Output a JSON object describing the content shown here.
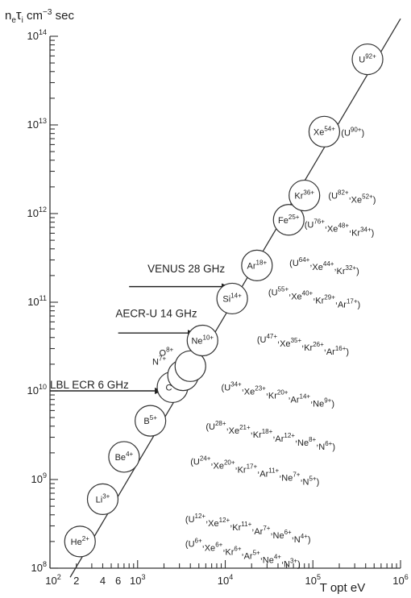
{
  "chart_data": {
    "type": "scatter",
    "title": "",
    "ylabel": "n_e τ_i cm^-3 sec",
    "xlabel": "T opt eV",
    "x_scale": "log",
    "y_scale": "log",
    "xlim": [
      100,
      1000000
    ],
    "ylim": [
      100000000,
      100000000000000
    ],
    "x_tick_labels": [
      {
        "value": 100,
        "base": "10",
        "exp": "2"
      },
      {
        "value": 200,
        "base": "2",
        "exp": ""
      },
      {
        "value": 400,
        "base": "4",
        "exp": ""
      },
      {
        "value": 600,
        "base": "6",
        "exp": ""
      },
      {
        "value": 1000,
        "base": "10",
        "exp": "3"
      },
      {
        "value": 10000,
        "base": "10",
        "exp": "4"
      },
      {
        "value": 100000,
        "base": "10",
        "exp": "5"
      },
      {
        "value": 1000000,
        "base": "10",
        "exp": "6"
      }
    ],
    "y_tick_labels": [
      {
        "value": 100000000,
        "base": "10",
        "exp": "8"
      },
      {
        "value": 1000000000,
        "base": "10",
        "exp": "9"
      },
      {
        "value": 10000000000,
        "base": "10",
        "exp": "10"
      },
      {
        "value": 100000000000,
        "base": "10",
        "exp": "11"
      },
      {
        "value": 1000000000000,
        "base": "10",
        "exp": "12"
      },
      {
        "value": 10000000000000,
        "base": "10",
        "exp": "13"
      },
      {
        "value": 100000000000000,
        "base": "10",
        "exp": "14"
      }
    ],
    "trend_line": {
      "x": [
        170,
        1000000
      ],
      "y": [
        79000000,
        158000000000000
      ]
    },
    "points": [
      {
        "label": "He",
        "charge": "2+",
        "x": 220,
        "y": 200000000
      },
      {
        "label": "Li",
        "charge": "3+",
        "x": 400,
        "y": 600000000
      },
      {
        "label": "Be",
        "charge": "4+",
        "x": 700,
        "y": 1800000000
      },
      {
        "label": "B",
        "charge": "5+",
        "x": 1400,
        "y": 4600000000
      },
      {
        "label": "C",
        "charge": "6+",
        "x": 2500,
        "y": 11000000000
      },
      {
        "label": "N",
        "charge": "7+",
        "x": 3300,
        "y": 15000000000
      },
      {
        "label": "O",
        "charge": "8+",
        "x": 4000,
        "y": 19000000000
      },
      {
        "label": "Ne",
        "charge": "10+",
        "x": 5500,
        "y": 37000000000
      },
      {
        "label": "Si",
        "charge": "14+",
        "x": 12000,
        "y": 110000000000
      },
      {
        "label": "Ar",
        "charge": "18+",
        "x": 23000,
        "y": 260000000000
      },
      {
        "label": "Fe",
        "charge": "25+",
        "x": 53000,
        "y": 850000000000
      },
      {
        "label": "Kr",
        "charge": "36+",
        "x": 80000,
        "y": 1600000000000
      },
      {
        "label": "Xe",
        "charge": "54+",
        "x": 135000,
        "y": 8400000000000
      },
      {
        "label": "U",
        "charge": "92+",
        "x": 420000,
        "y": 55000000000000
      }
    ],
    "ion_groups": [
      {
        "x": 210000,
        "y": 8200000000000,
        "ions": [
          {
            "e": "U",
            "c": "90+"
          }
        ]
      },
      {
        "x": 150000,
        "y": 1600000000000,
        "ions": [
          {
            "e": "U",
            "c": "82+"
          },
          {
            "e": "Xe",
            "c": "52+"
          }
        ]
      },
      {
        "x": 80000,
        "y": 750000000000,
        "ions": [
          {
            "e": "U",
            "c": "76+"
          },
          {
            "e": "Xe",
            "c": "48+"
          },
          {
            "e": "Kr",
            "c": "34+"
          }
        ]
      },
      {
        "x": 54000,
        "y": 280000000000,
        "ions": [
          {
            "e": "U",
            "c": "64+"
          },
          {
            "e": "Xe",
            "c": "44+"
          },
          {
            "e": "Kr",
            "c": "32+"
          }
        ]
      },
      {
        "x": 31000,
        "y": 130000000000,
        "ions": [
          {
            "e": "U",
            "c": "55+"
          },
          {
            "e": "Xe",
            "c": "40+"
          },
          {
            "e": "Kr",
            "c": "29+"
          },
          {
            "e": "Ar",
            "c": "17+"
          }
        ]
      },
      {
        "x": 23000,
        "y": 38000000000,
        "ions": [
          {
            "e": "U",
            "c": "47+"
          },
          {
            "e": "Xe",
            "c": "35+"
          },
          {
            "e": "Kr",
            "c": "26+"
          },
          {
            "e": "Ar",
            "c": "16+"
          }
        ]
      },
      {
        "x": 9000,
        "y": 11000000000,
        "ions": [
          {
            "e": "U",
            "c": "34+"
          },
          {
            "e": "Xe",
            "c": "23+"
          },
          {
            "e": "Kr",
            "c": "20+"
          },
          {
            "e": "Ar",
            "c": "14+"
          },
          {
            "e": "Ne",
            "c": "9+"
          }
        ]
      },
      {
        "x": 6000,
        "y": 4000000000,
        "ions": [
          {
            "e": "U",
            "c": "28+"
          },
          {
            "e": "Xe",
            "c": "21+"
          },
          {
            "e": "Kr",
            "c": "18+"
          },
          {
            "e": "Ar",
            "c": "12+"
          },
          {
            "e": "Ne",
            "c": "8+"
          },
          {
            "e": "N",
            "c": "6+"
          }
        ]
      },
      {
        "x": 4000,
        "y": 1600000000,
        "ions": [
          {
            "e": "U",
            "c": "24+"
          },
          {
            "e": "Xe",
            "c": "20+"
          },
          {
            "e": "Kr",
            "c": "17+"
          },
          {
            "e": "Ar",
            "c": "11+"
          },
          {
            "e": "Ne",
            "c": "7+"
          },
          {
            "e": "N",
            "c": "5+"
          }
        ]
      },
      {
        "x": 3500,
        "y": 360000000,
        "ions": [
          {
            "e": "U",
            "c": "12+"
          },
          {
            "e": "Xe",
            "c": "12+"
          },
          {
            "e": "Kr",
            "c": "11+"
          },
          {
            "e": "Ar",
            "c": "7+"
          },
          {
            "e": "Ne",
            "c": "6+"
          },
          {
            "e": "N",
            "c": "4+"
          }
        ]
      },
      {
        "x": 3500,
        "y": 190000000,
        "ions": [
          {
            "e": "U",
            "c": "6+"
          },
          {
            "e": "Xe",
            "c": "6+"
          },
          {
            "e": "Kr",
            "c": "6+"
          },
          {
            "e": "Ar",
            "c": "5+"
          },
          {
            "e": "Ne",
            "c": "4+"
          },
          {
            "e": "N",
            "c": "3+"
          }
        ]
      }
    ],
    "annotations": [
      {
        "text": "VENUS 28 GHz",
        "text_x": 1300,
        "text_y": 240000000000,
        "arrow_from_x": 800,
        "arrow_to_x": 11000,
        "arrow_y": 150000000000
      },
      {
        "text": "AECR-U 14 GHz",
        "text_x": 560,
        "text_y": 75000000000,
        "arrow_from_x": 600,
        "arrow_to_x": 4500,
        "arrow_y": 45000000000
      },
      {
        "text": "LBL ECR 6 GHz",
        "text_x": 100,
        "text_y": 11800000000,
        "arrow_from_x": 100,
        "arrow_to_x": 1900,
        "arrow_y": 10000000000
      }
    ]
  }
}
